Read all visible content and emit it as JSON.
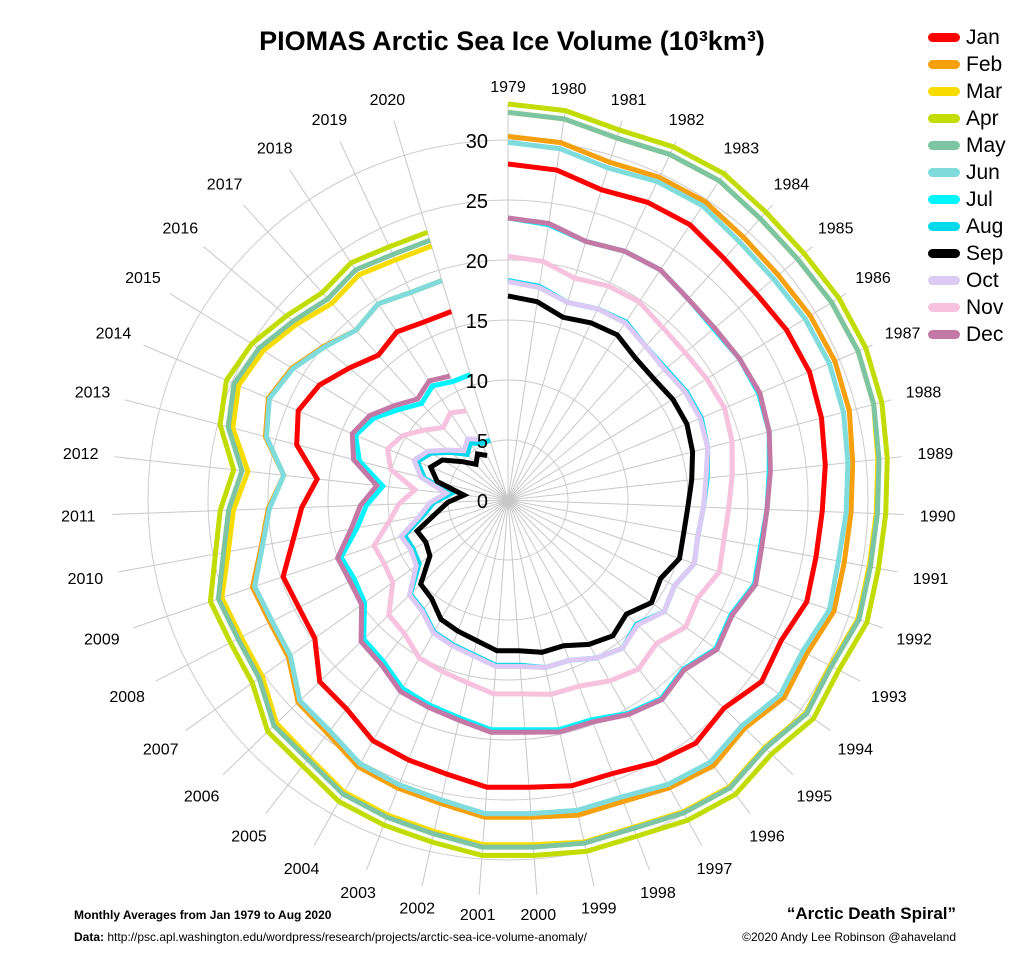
{
  "title": "PIOMAS Arctic Sea Ice Volume (10³km³)",
  "footer": {
    "subtitle": "Monthly Averages from Jan 1979 to Aug 2020",
    "data_label": "Data:",
    "data_url": "http://psc.apl.washington.edu/wordpress/research/projects/arctic-sea-ice-volume-anomaly/",
    "nickname": "“Arctic Death Spiral”",
    "copyright": "©2020 Andy Lee Robinson @ahaveland"
  },
  "chart_data": {
    "type": "line",
    "subtype": "polar",
    "title": "PIOMAS Arctic Sea Ice Volume (10³km³)",
    "angular_axis": "year",
    "radial_axis": "volume (10³km³)",
    "radial_ticks": [
      0,
      5,
      10,
      15,
      20,
      25,
      30
    ],
    "rlim": [
      0,
      33
    ],
    "years": [
      1979,
      1980,
      1981,
      1982,
      1983,
      1984,
      1985,
      1986,
      1987,
      1988,
      1989,
      1990,
      1991,
      1992,
      1993,
      1994,
      1995,
      1996,
      1997,
      1998,
      1999,
      2000,
      2001,
      2002,
      2003,
      2004,
      2005,
      2006,
      2007,
      2008,
      2009,
      2010,
      2011,
      2012,
      2013,
      2014,
      2015,
      2016,
      2017,
      2018,
      2019,
      2020
    ],
    "legend_position": "top-right",
    "series": [
      {
        "name": "Jan",
        "color": "#ff0000",
        "values": [
          28,
          27.8,
          27,
          27.4,
          27.5,
          27,
          26.9,
          27.2,
          27.3,
          27,
          26.6,
          26.2,
          26.1,
          26.3,
          25.6,
          26,
          25,
          25.6,
          25.1,
          24.4,
          24.4,
          24,
          24,
          23.4,
          23.2,
          23,
          22,
          21.8,
          19.8,
          19.6,
          19.8,
          18.2,
          17.2,
          16,
          18.2,
          19,
          18.4,
          17.2,
          16.2,
          16.8,
          16.4,
          16.4
        ]
      },
      {
        "name": "Feb",
        "color": "#f7a00e",
        "values": [
          30.3,
          30.1,
          29.4,
          29.7,
          29.8,
          29.4,
          29.3,
          29.5,
          29.6,
          29.4,
          28.9,
          28.6,
          28.5,
          28.7,
          28,
          28.3,
          27.4,
          28,
          27.5,
          26.9,
          26.9,
          26.5,
          26.5,
          25.9,
          25.7,
          25.5,
          24.6,
          24.3,
          22.5,
          22.3,
          22.5,
          20.9,
          20,
          18.8,
          20.9,
          21.7,
          21.1,
          20,
          19,
          19.6,
          19.1,
          19.1
        ]
      },
      {
        "name": "Mar",
        "color": "#f7dc00",
        "values": [
          32.3,
          32.1,
          31.5,
          31.8,
          31.9,
          31.5,
          31.4,
          31.6,
          31.7,
          31.5,
          31,
          30.7,
          30.6,
          30.8,
          30.2,
          30.5,
          29.7,
          30.2,
          29.8,
          29.2,
          29.2,
          28.8,
          28.8,
          28.3,
          28.1,
          27.9,
          27.1,
          26.8,
          25.2,
          25,
          25.2,
          23.7,
          22.9,
          21.8,
          23.7,
          24.4,
          23.9,
          22.9,
          22,
          22.5,
          22.1,
          22.1
        ]
      },
      {
        "name": "Apr",
        "color": "#c2dc00",
        "values": [
          33,
          32.8,
          32.2,
          32.5,
          32.6,
          32.2,
          32.1,
          32.3,
          32.4,
          32.2,
          31.8,
          31.5,
          31.4,
          31.6,
          31,
          31.3,
          30.5,
          31,
          30.6,
          30,
          30,
          29.7,
          29.7,
          29.2,
          29,
          28.8,
          28,
          27.8,
          26.2,
          26,
          26.2,
          24.8,
          24,
          23,
          24.8,
          25.5,
          25,
          24,
          23.2,
          23.7,
          23.3,
          23.3
        ]
      },
      {
        "name": "May",
        "color": "#7cc4a2",
        "values": [
          32.3,
          32.1,
          31.5,
          31.8,
          31.9,
          31.5,
          31.4,
          31.6,
          31.7,
          31.5,
          31.1,
          30.8,
          30.7,
          30.9,
          30.3,
          30.6,
          29.8,
          30.3,
          29.9,
          29.3,
          29.3,
          29,
          29,
          28.5,
          28.3,
          28.1,
          27.3,
          27.1,
          25.5,
          25.3,
          25.5,
          24.1,
          23.3,
          22.3,
          24.1,
          24.8,
          24.3,
          23.3,
          22.5,
          23,
          22.6,
          22.6
        ]
      },
      {
        "name": "Jun",
        "color": "#80dcdc",
        "values": [
          29.8,
          29.6,
          28.9,
          29.3,
          29.4,
          28.9,
          28.8,
          29,
          29.1,
          28.9,
          28.5,
          28.2,
          28,
          28.3,
          27.6,
          27.9,
          27.1,
          27.6,
          27.2,
          26.5,
          26.5,
          26.2,
          26.2,
          25.6,
          25.4,
          25.2,
          24.3,
          24.1,
          22.3,
          22.1,
          22.3,
          20.8,
          19.9,
          18.8,
          20.8,
          21.6,
          21,
          19.9,
          19,
          19.6,
          19.1,
          19.1
        ]
      },
      {
        "name": "Jul",
        "color": "#00f5ff",
        "values": [
          23.5,
          23.2,
          22.5,
          22.9,
          23,
          22.5,
          22.3,
          22.6,
          22.7,
          22.5,
          21.9,
          21.6,
          21.4,
          21.7,
          20.9,
          21.3,
          20.3,
          20.9,
          20.4,
          19.6,
          19.6,
          19.2,
          19.2,
          18.6,
          18.3,
          18,
          17,
          16.7,
          14.7,
          14.4,
          14.7,
          12.8,
          11.8,
          10.5,
          12.8,
          13.8,
          13.1,
          11.8,
          10.8,
          11.4,
          10.9,
          10.9
        ]
      },
      {
        "name": "Aug",
        "color": "#00d8ec",
        "values": [
          18.3,
          18,
          17.2,
          17.6,
          17.8,
          17.2,
          17.1,
          17.4,
          17.5,
          17.2,
          16.7,
          16.3,
          16.1,
          16.4,
          15.6,
          16,
          14.9,
          15.6,
          15.1,
          14.3,
          14.3,
          13.8,
          13.8,
          13.2,
          12.9,
          12.6,
          11.6,
          11.3,
          9.1,
          8.9,
          9.1,
          7.2,
          6.2,
          4.8,
          7.2,
          8.2,
          7.5,
          6.2,
          5.1,
          5.7,
          5.2,
          5.2
        ]
      },
      {
        "name": "Sep",
        "color": "#000000",
        "values": [
          17,
          16.7,
          15.9,
          16.3,
          16.5,
          15.9,
          15.8,
          16.1,
          16.2,
          15.9,
          15.4,
          15,
          14.9,
          15.1,
          14.3,
          14.7,
          13.7,
          14.3,
          13.8,
          13,
          13,
          12.6,
          12.6,
          12,
          11.7,
          11.4,
          10.4,
          10.1,
          8,
          7.7,
          8,
          6.1,
          5,
          3.7,
          6.1,
          7,
          6.4,
          5,
          4,
          4.6,
          4.1
        ]
      },
      {
        "name": "Oct",
        "color": "#dccaf4",
        "values": [
          18.2,
          17.9,
          17.2,
          17.6,
          17.7,
          17.2,
          17,
          17.3,
          17.4,
          17.2,
          16.6,
          16.3,
          16.1,
          16.4,
          15.6,
          16,
          15,
          15.6,
          15.1,
          14.3,
          14.3,
          13.9,
          13.9,
          13.3,
          13,
          12.7,
          11.7,
          11.4,
          9.4,
          9.1,
          9.4,
          7.5,
          6.5,
          5.2,
          7.5,
          8.5,
          7.8,
          6.5,
          5.5,
          6.1,
          5.6
        ]
      },
      {
        "name": "Nov",
        "color": "#f6c2de",
        "values": [
          20.3,
          20.1,
          19.3,
          19.7,
          19.8,
          19.3,
          19.2,
          19.4,
          19.6,
          19.3,
          18.8,
          18.4,
          18.3,
          18.6,
          17.8,
          18.2,
          17.2,
          17.8,
          17.3,
          16.6,
          16.6,
          16.2,
          16.2,
          15.6,
          15.3,
          15.1,
          14.1,
          13.8,
          11.8,
          11.6,
          11.8,
          10.1,
          9.1,
          7.8,
          10.1,
          10.9,
          10.3,
          9.1,
          8.1,
          8.7,
          8.2
        ]
      },
      {
        "name": "Dec",
        "color": "#c478a6",
        "values": [
          23.5,
          23.3,
          22.5,
          22.9,
          23,
          22.5,
          22.4,
          22.6,
          22.8,
          22.5,
          22,
          21.6,
          21.5,
          21.8,
          21,
          21.4,
          20.4,
          21,
          20.5,
          19.8,
          19.8,
          19.4,
          19.4,
          18.8,
          18.5,
          18.3,
          17.3,
          17,
          15,
          14.8,
          15,
          13.3,
          12.3,
          11,
          13.3,
          14.1,
          13.5,
          12.3,
          11.3,
          11.9,
          11.4
        ]
      }
    ]
  }
}
